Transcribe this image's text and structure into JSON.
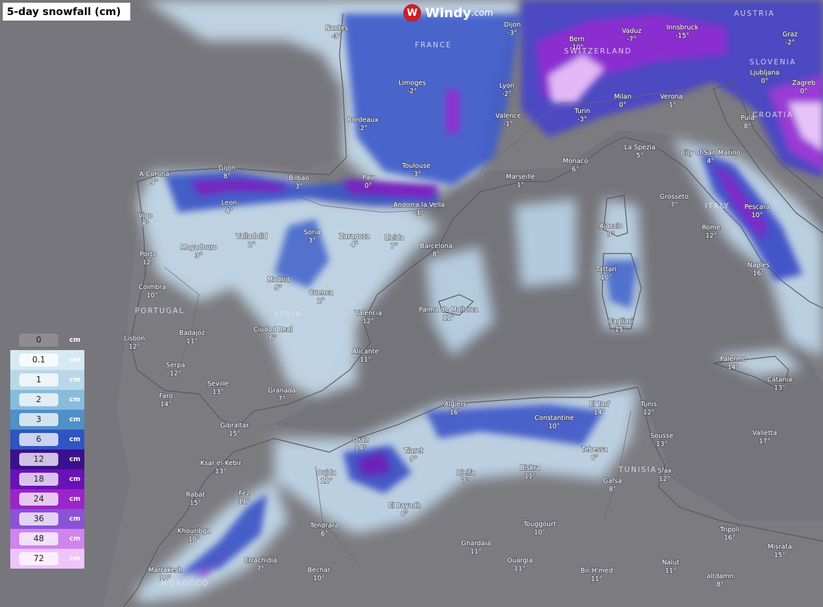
{
  "header": {
    "title": "5-day snowfall (cm)",
    "brand": "Windy",
    "brand_suffix": ".com"
  },
  "legend": {
    "unit": "cm",
    "items": [
      {
        "label": "0",
        "color": "#8d8c90"
      },
      {
        "label": "0.1",
        "color": "#d7e9f3"
      },
      {
        "label": "1",
        "color": "#b8d8ea"
      },
      {
        "label": "2",
        "color": "#88bcdc"
      },
      {
        "label": "3",
        "color": "#4f90c6"
      },
      {
        "label": "6",
        "color": "#2f55c4"
      },
      {
        "label": "12",
        "color": "#3b0f8e"
      },
      {
        "label": "18",
        "color": "#6a12b8"
      },
      {
        "label": "24",
        "color": "#9a25c9"
      },
      {
        "label": "36",
        "color": "#8b52d6"
      },
      {
        "label": "48",
        "color": "#cf84ee"
      },
      {
        "label": "72",
        "color": "#efc4fb"
      }
    ]
  },
  "countries": [
    "FRANCE",
    "SWITZERLAND",
    "AUSTRIA",
    "SLOVENIA",
    "CROATIA",
    "ITALY",
    "PORTUGAL",
    "SPAIN",
    "TUNISIA",
    "MOROCCO"
  ],
  "cities": [
    {
      "name": "Nantes",
      "temp": "-3°"
    },
    {
      "name": "Dijon",
      "temp": "-3°"
    },
    {
      "name": "Bern",
      "temp": "-10°"
    },
    {
      "name": "Vaduz",
      "temp": "-7°"
    },
    {
      "name": "Innsbruck",
      "temp": "-15°"
    },
    {
      "name": "Graz",
      "temp": "-2°"
    },
    {
      "name": "Ljubljana",
      "temp": "0°"
    },
    {
      "name": "Zagreb",
      "temp": "0°"
    },
    {
      "name": "Limoges",
      "temp": "-2°"
    },
    {
      "name": "Lyon",
      "temp": "-2°"
    },
    {
      "name": "Milan",
      "temp": "0°"
    },
    {
      "name": "Verona",
      "temp": "-1°"
    },
    {
      "name": "Pula",
      "temp": "8°"
    },
    {
      "name": "Turin",
      "temp": "-3°"
    },
    {
      "name": "Valence",
      "temp": "-1°"
    },
    {
      "name": "Bordeaux",
      "temp": "-2°"
    },
    {
      "name": "La Spezia",
      "temp": "5°"
    },
    {
      "name": "City of San Marino",
      "temp": "4°"
    },
    {
      "name": "Monaco",
      "temp": "6°"
    },
    {
      "name": "Toulouse",
      "temp": "-3°"
    },
    {
      "name": "Marseille",
      "temp": "1°"
    },
    {
      "name": "Pau",
      "temp": "0°"
    },
    {
      "name": "Bilbao",
      "temp": "3°"
    },
    {
      "name": "Gijon",
      "temp": "8°"
    },
    {
      "name": "A Coruna",
      "temp": "9°"
    },
    {
      "name": "Andorra la Vella",
      "temp": "-1°"
    },
    {
      "name": "Leon",
      "temp": "4°"
    },
    {
      "name": "Grosseto",
      "temp": "7°"
    },
    {
      "name": "Pescara",
      "temp": "10°"
    },
    {
      "name": "Vigo",
      "temp": "8°"
    },
    {
      "name": "Ajaccio",
      "temp": "9°"
    },
    {
      "name": "Rome",
      "temp": "12°"
    },
    {
      "name": "Valladolid",
      "temp": "2°"
    },
    {
      "name": "Soria",
      "temp": "3°"
    },
    {
      "name": "Zaragoza",
      "temp": "4°"
    },
    {
      "name": "Lleida",
      "temp": "7°"
    },
    {
      "name": "Barcelona",
      "temp": "8°"
    },
    {
      "name": "Mogadouro",
      "temp": "3°"
    },
    {
      "name": "Porto",
      "temp": "12°"
    },
    {
      "name": "Naples",
      "temp": "16°"
    },
    {
      "name": "Tattari",
      "temp": "10°"
    },
    {
      "name": "Madrid",
      "temp": "5°"
    },
    {
      "name": "Coimbra",
      "temp": "10°"
    },
    {
      "name": "Cuenca",
      "temp": "2°"
    },
    {
      "name": "Palma de Mallorca",
      "temp": "11°"
    },
    {
      "name": "Valencia",
      "temp": "12°"
    },
    {
      "name": "Cagliari",
      "temp": "15°"
    },
    {
      "name": "Ciudad Real",
      "temp": "6°"
    },
    {
      "name": "Badajoz",
      "temp": "11°"
    },
    {
      "name": "Lisbon",
      "temp": "12°"
    },
    {
      "name": "Alicante",
      "temp": "11°"
    },
    {
      "name": "Palermo",
      "temp": "14°"
    },
    {
      "name": "Serpa",
      "temp": "12°"
    },
    {
      "name": "Catania",
      "temp": "13°"
    },
    {
      "name": "Seville",
      "temp": "13°"
    },
    {
      "name": "Granada",
      "temp": "7°"
    },
    {
      "name": "Faro",
      "temp": "14°"
    },
    {
      "name": "Algiers",
      "temp": "16°"
    },
    {
      "name": "El Tarf",
      "temp": "14°"
    },
    {
      "name": "Tunis",
      "temp": "12°"
    },
    {
      "name": "Constantine",
      "temp": "10°"
    },
    {
      "name": "Gibraltar",
      "temp": "15°"
    },
    {
      "name": "Valletta",
      "temp": "17°"
    },
    {
      "name": "Sousse",
      "temp": "13°"
    },
    {
      "name": "Oran",
      "temp": "14°"
    },
    {
      "name": "Tiaret",
      "temp": "9°"
    },
    {
      "name": "Tebessa",
      "temp": "6°"
    },
    {
      "name": "Ksar el-Kebir",
      "temp": "13°"
    },
    {
      "name": "Oujda",
      "temp": "11°"
    },
    {
      "name": "Djelfa",
      "temp": "7°"
    },
    {
      "name": "Biskra",
      "temp": "11°"
    },
    {
      "name": "Sfax",
      "temp": "12°"
    },
    {
      "name": "Gafsa",
      "temp": "8°"
    },
    {
      "name": "Rabat",
      "temp": "15°"
    },
    {
      "name": "Fez",
      "temp": "11°"
    },
    {
      "name": "El Bayadh",
      "temp": "6°"
    },
    {
      "name": "Tendrara",
      "temp": "6°"
    },
    {
      "name": "Touggourt",
      "temp": "10°"
    },
    {
      "name": "Tripoli",
      "temp": "16°"
    },
    {
      "name": "Khouribga",
      "temp": "10°"
    },
    {
      "name": "Ghardaia",
      "temp": "11°"
    },
    {
      "name": "Misrata",
      "temp": "15°"
    },
    {
      "name": "Errachidia",
      "temp": "7°"
    },
    {
      "name": "Ouargla",
      "temp": "11°"
    },
    {
      "name": "Nalut",
      "temp": "11°"
    },
    {
      "name": "Bechar",
      "temp": "10°"
    },
    {
      "name": "Marrakesh",
      "temp": "10°"
    },
    {
      "name": "Bir H'med",
      "temp": "11°"
    },
    {
      "name": "altdamn",
      "temp": "8°"
    }
  ]
}
